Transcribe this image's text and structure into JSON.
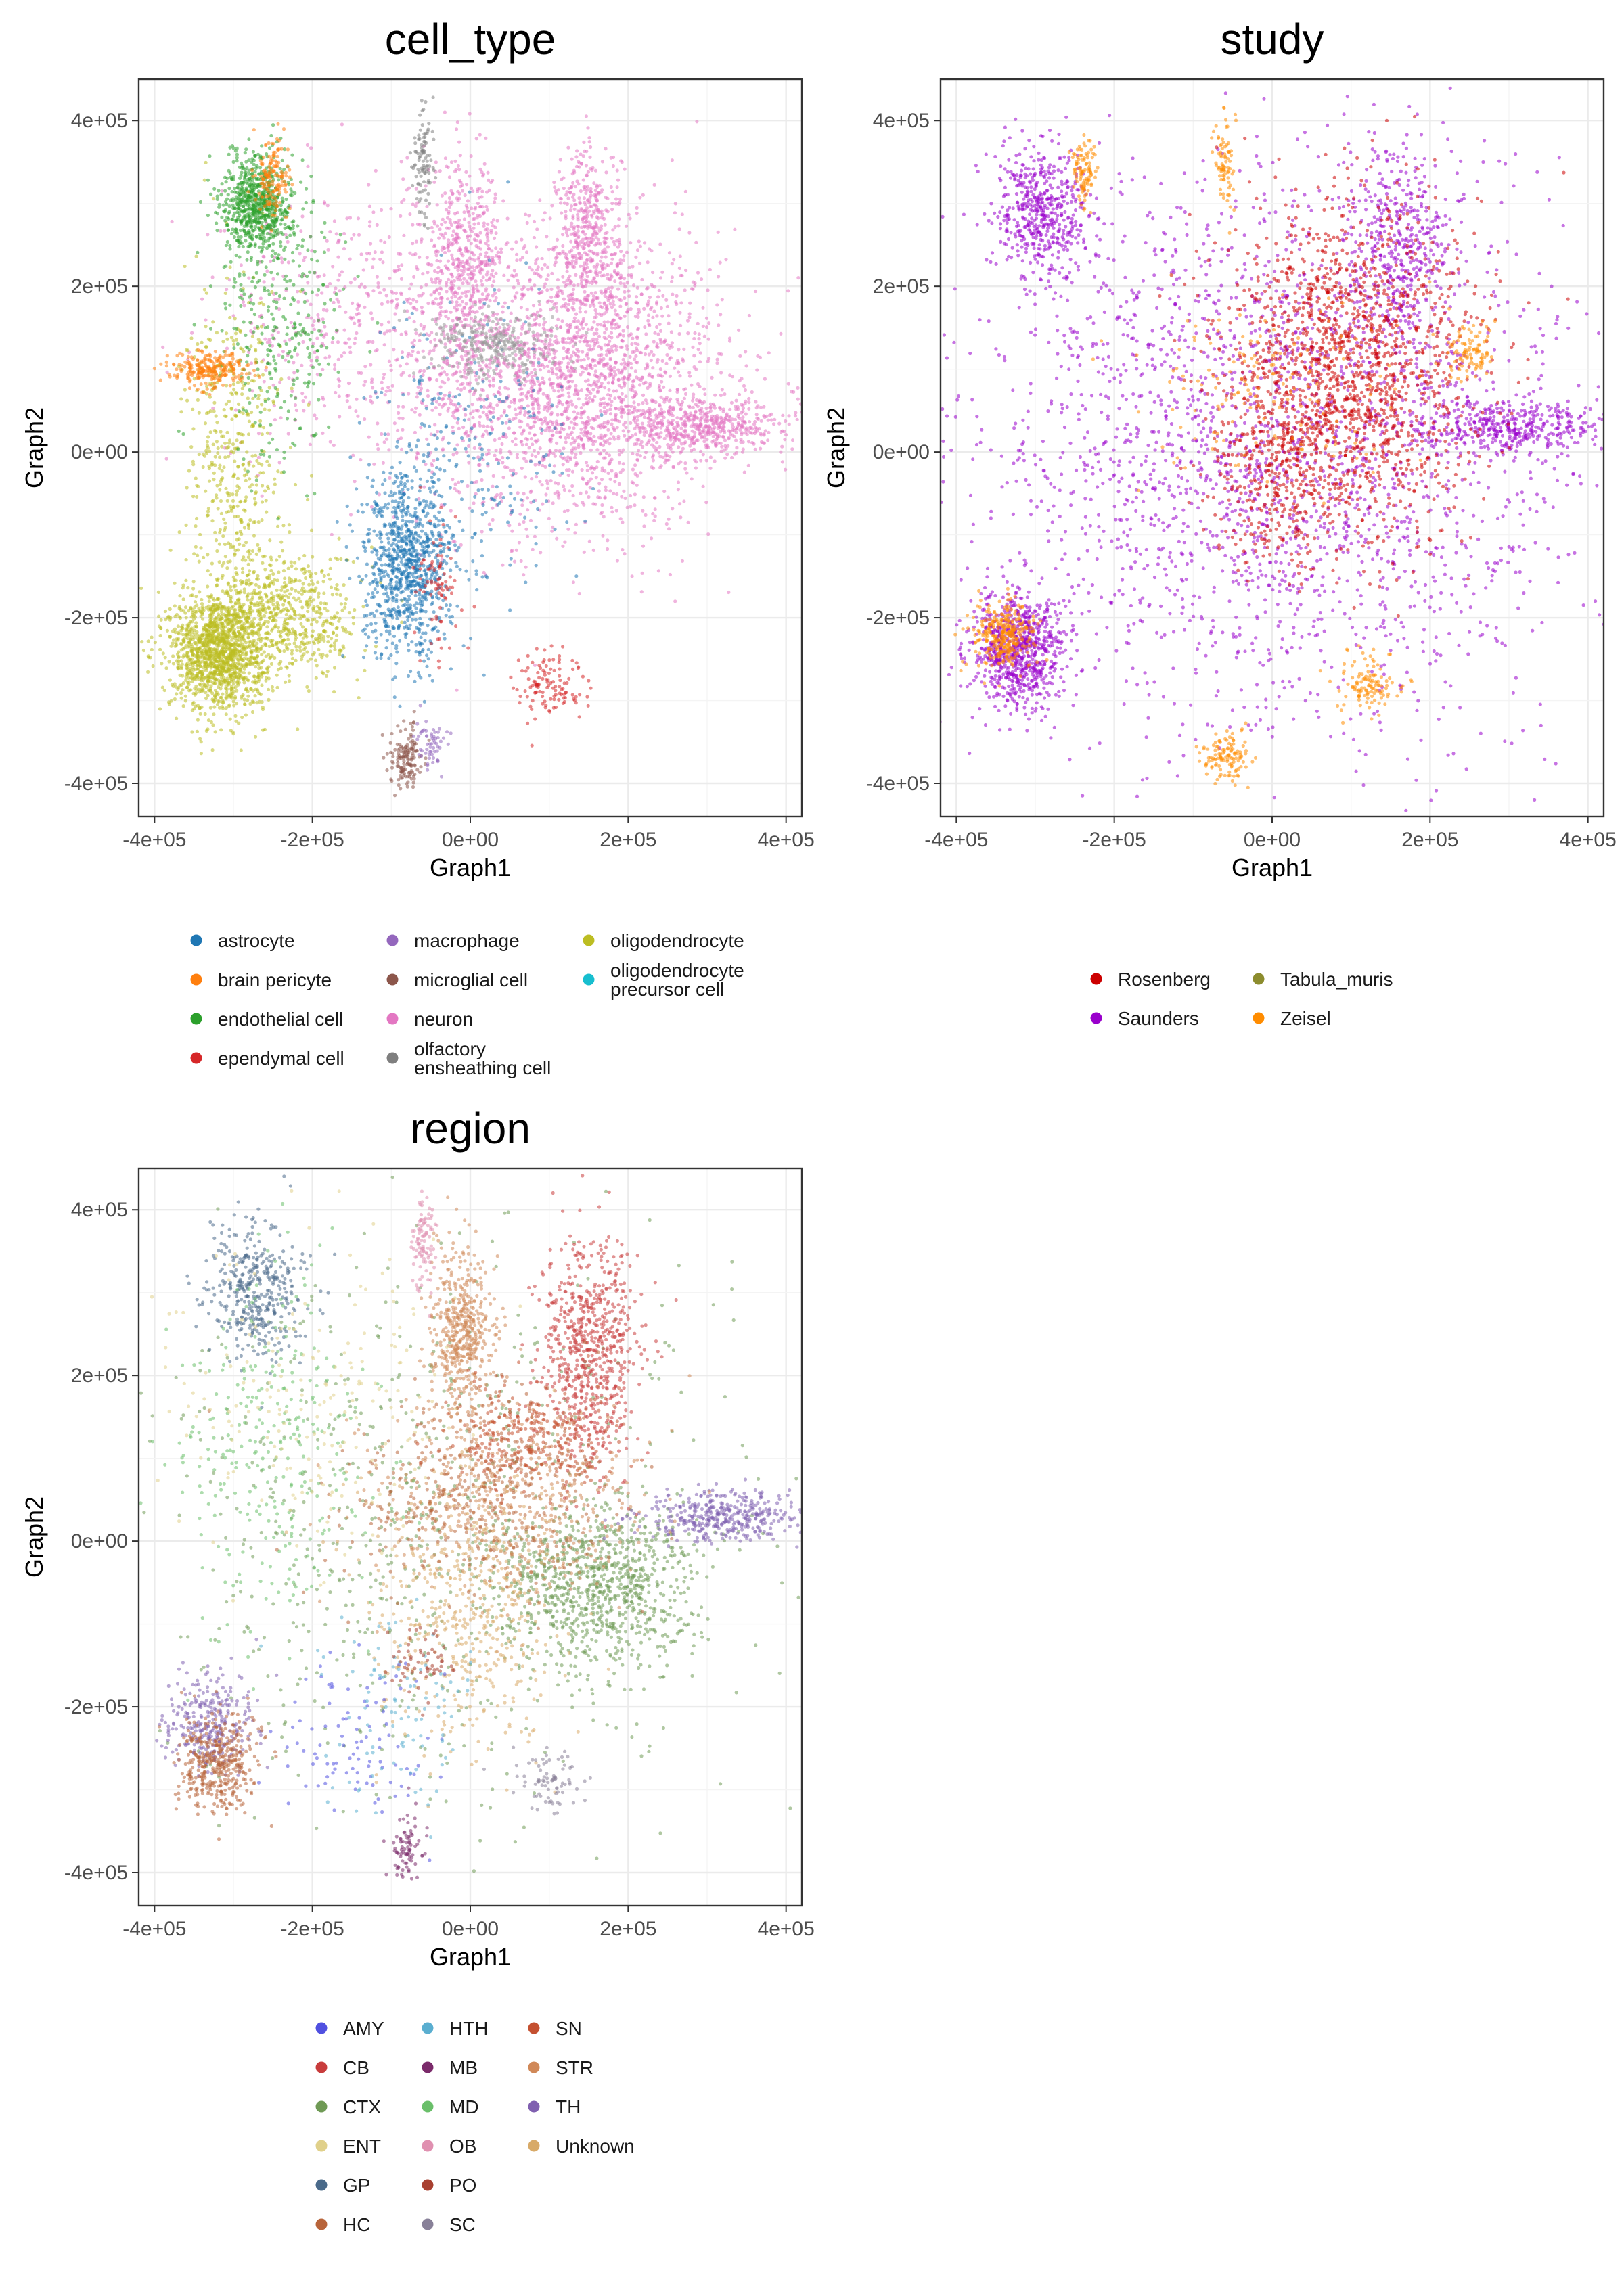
{
  "chart_data": [
    {
      "type": "scatter",
      "title": "cell_type",
      "xlabel": "Graph1",
      "ylabel": "Graph2",
      "xlim": [
        -420000,
        420000
      ],
      "ylim": [
        -440000,
        450000
      ],
      "xticks": [
        -400000,
        -200000,
        0,
        200000,
        400000
      ],
      "yticks": [
        -400000,
        -200000,
        0,
        200000,
        400000
      ],
      "xtick_labels": [
        "-4e+05",
        "-2e+05",
        "0e+00",
        "2e+05",
        "4e+05"
      ],
      "ytick_labels": [
        "-4e+05",
        "-2e+05",
        "0e+00",
        "2e+05",
        "4e+05"
      ],
      "grid": true,
      "legend_position": "bottom",
      "legend": [
        {
          "label": "astrocyte",
          "color": "#1f77b4"
        },
        {
          "label": "brain pericyte",
          "color": "#ff7f0e"
        },
        {
          "label": "endothelial cell",
          "color": "#2ca02c"
        },
        {
          "label": "ependymal cell",
          "color": "#d62728"
        },
        {
          "label": "macrophage",
          "color": "#9467bd"
        },
        {
          "label": "microglial cell",
          "color": "#8c564b"
        },
        {
          "label": "neuron",
          "color": "#e377c2"
        },
        {
          "label": "olfactory\nensheathing cell",
          "color": "#7f7f7f"
        },
        {
          "label": "oligodendrocyte",
          "color": "#bcbd22"
        },
        {
          "label": "oligodendrocyte\nprecursor cell",
          "color": "#17becf"
        }
      ],
      "clusters": [
        {
          "series": "neuron",
          "x": 130000,
          "y": 90000,
          "sx": 95000,
          "sy": 90000,
          "n": 2400
        },
        {
          "series": "neuron",
          "x": 300000,
          "y": 30000,
          "sx": 60000,
          "sy": 15000,
          "n": 500
        },
        {
          "series": "neuron",
          "x": -10000,
          "y": 230000,
          "sx": 25000,
          "sy": 60000,
          "n": 500
        },
        {
          "series": "neuron",
          "x": 150000,
          "y": 270000,
          "sx": 20000,
          "sy": 50000,
          "n": 400
        },
        {
          "series": "neuron",
          "x": -150000,
          "y": 150000,
          "sx": 90000,
          "sy": 80000,
          "n": 500
        },
        {
          "series": "oligodendrocyte",
          "x": -320000,
          "y": -240000,
          "sx": 30000,
          "sy": 35000,
          "n": 1400
        },
        {
          "series": "oligodendrocyte",
          "x": -230000,
          "y": -200000,
          "sx": 45000,
          "sy": 40000,
          "n": 600
        },
        {
          "series": "oligodendrocyte",
          "x": -300000,
          "y": -20000,
          "sx": 30000,
          "sy": 110000,
          "n": 500
        },
        {
          "series": "endothelial cell",
          "x": -270000,
          "y": 300000,
          "sx": 22000,
          "sy": 30000,
          "n": 700
        },
        {
          "series": "endothelial cell",
          "x": -240000,
          "y": 150000,
          "sx": 40000,
          "sy": 80000,
          "n": 300
        },
        {
          "series": "astrocyte",
          "x": -80000,
          "y": -140000,
          "sx": 28000,
          "sy": 55000,
          "n": 900
        },
        {
          "series": "astrocyte",
          "x": 0,
          "y": 0,
          "sx": 60000,
          "sy": 100000,
          "n": 250
        },
        {
          "series": "brain pericyte",
          "x": -330000,
          "y": 100000,
          "sx": 25000,
          "sy": 10000,
          "n": 250
        },
        {
          "series": "brain pericyte",
          "x": -250000,
          "y": 330000,
          "sx": 10000,
          "sy": 25000,
          "n": 150
        },
        {
          "series": "oligodendrocyte precursor cell",
          "x": 30000,
          "y": 130000,
          "sx": 40000,
          "sy": 20000,
          "n": 300
        },
        {
          "series": "ependymal cell",
          "x": -40000,
          "y": -160000,
          "sx": 15000,
          "sy": 40000,
          "n": 80
        },
        {
          "series": "ependymal cell",
          "x": 100000,
          "y": -280000,
          "sx": 20000,
          "sy": 20000,
          "n": 120
        },
        {
          "series": "microglial cell",
          "x": -80000,
          "y": -370000,
          "sx": 10000,
          "sy": 20000,
          "n": 150
        },
        {
          "series": "macrophage",
          "x": -50000,
          "y": -350000,
          "sx": 10000,
          "sy": 15000,
          "n": 60
        },
        {
          "series": "olfactory\nensheathing cell",
          "x": -60000,
          "y": 350000,
          "sx": 6000,
          "sy": 35000,
          "n": 100
        }
      ]
    },
    {
      "type": "scatter",
      "title": "study",
      "xlabel": "Graph1",
      "ylabel": "Graph2",
      "xlim": [
        -420000,
        420000
      ],
      "ylim": [
        -440000,
        450000
      ],
      "xticks": [
        -400000,
        -200000,
        0,
        200000,
        400000
      ],
      "yticks": [
        -400000,
        -200000,
        0,
        200000,
        400000
      ],
      "xtick_labels": [
        "-4e+05",
        "-2e+05",
        "0e+00",
        "2e+05",
        "4e+05"
      ],
      "ytick_labels": [
        "-4e+05",
        "-2e+05",
        "0e+00",
        "2e+05",
        "4e+05"
      ],
      "grid": true,
      "legend_position": "bottom",
      "legend": [
        {
          "label": "Rosenberg",
          "color": "#cc0000"
        },
        {
          "label": "Saunders",
          "color": "#9900cc"
        },
        {
          "label": "Tabula_muris",
          "color": "#8c8c2e"
        },
        {
          "label": "Zeisel",
          "color": "#ff8c00"
        }
      ],
      "clusters": [
        {
          "series": "Saunders",
          "x": 0,
          "y": 0,
          "sx": 200000,
          "sy": 170000,
          "n": 2400
        },
        {
          "series": "Saunders",
          "x": -320000,
          "y": -240000,
          "sx": 30000,
          "sy": 35000,
          "n": 800
        },
        {
          "series": "Saunders",
          "x": -290000,
          "y": 290000,
          "sx": 30000,
          "sy": 40000,
          "n": 500
        },
        {
          "series": "Saunders",
          "x": 300000,
          "y": 30000,
          "sx": 60000,
          "sy": 15000,
          "n": 400
        },
        {
          "series": "Saunders",
          "x": 160000,
          "y": 250000,
          "sx": 30000,
          "sy": 60000,
          "n": 400
        },
        {
          "series": "Rosenberg",
          "x": 100000,
          "y": 100000,
          "sx": 80000,
          "sy": 100000,
          "n": 1600
        },
        {
          "series": "Rosenberg",
          "x": 0,
          "y": -30000,
          "sx": 40000,
          "sy": 60000,
          "n": 300
        },
        {
          "series": "Zeisel",
          "x": -340000,
          "y": -220000,
          "sx": 20000,
          "sy": 20000,
          "n": 300
        },
        {
          "series": "Zeisel",
          "x": -240000,
          "y": 340000,
          "sx": 8000,
          "sy": 20000,
          "n": 100
        },
        {
          "series": "Zeisel",
          "x": -60000,
          "y": 350000,
          "sx": 6000,
          "sy": 30000,
          "n": 80
        },
        {
          "series": "Zeisel",
          "x": -60000,
          "y": -370000,
          "sx": 15000,
          "sy": 15000,
          "n": 120
        },
        {
          "series": "Zeisel",
          "x": 120000,
          "y": -280000,
          "sx": 20000,
          "sy": 20000,
          "n": 120
        },
        {
          "series": "Zeisel",
          "x": 250000,
          "y": 120000,
          "sx": 15000,
          "sy": 20000,
          "n": 100
        },
        {
          "series": "Zeisel",
          "x": 0,
          "y": 80000,
          "sx": 80000,
          "sy": 50000,
          "n": 150
        }
      ]
    },
    {
      "type": "scatter",
      "title": "region",
      "xlabel": "Graph1",
      "ylabel": "Graph2",
      "xlim": [
        -420000,
        420000
      ],
      "ylim": [
        -440000,
        450000
      ],
      "xticks": [
        -400000,
        -200000,
        0,
        200000,
        400000
      ],
      "yticks": [
        -400000,
        -200000,
        0,
        200000,
        400000
      ],
      "xtick_labels": [
        "-4e+05",
        "-2e+05",
        "0e+00",
        "2e+05",
        "4e+05"
      ],
      "ytick_labels": [
        "-4e+05",
        "-2e+05",
        "0e+00",
        "2e+05",
        "4e+05"
      ],
      "grid": true,
      "legend_position": "bottom",
      "legend": [
        {
          "label": "AMY",
          "color": "#5050e0"
        },
        {
          "label": "CB",
          "color": "#c83c3c"
        },
        {
          "label": "CTX",
          "color": "#6f9a55"
        },
        {
          "label": "ENT",
          "color": "#e0d08a"
        },
        {
          "label": "GP",
          "color": "#4a6a8a"
        },
        {
          "label": "HC",
          "color": "#b8643a"
        },
        {
          "label": "HTH",
          "color": "#5aaed0"
        },
        {
          "label": "MB",
          "color": "#7a2a6a"
        },
        {
          "label": "MD",
          "color": "#6abf6a"
        },
        {
          "label": "OB",
          "color": "#e090b0"
        },
        {
          "label": "PO",
          "color": "#a84030"
        },
        {
          "label": "SC",
          "color": "#888098"
        },
        {
          "label": "SN",
          "color": "#c45030"
        },
        {
          "label": "STR",
          "color": "#d08858"
        },
        {
          "label": "TH",
          "color": "#8060b0"
        },
        {
          "label": "Unknown",
          "color": "#d8aa68"
        }
      ],
      "clusters": [
        {
          "series": "CTX",
          "x": 160000,
          "y": -60000,
          "sx": 60000,
          "sy": 50000,
          "n": 900
        },
        {
          "series": "CTX",
          "x": -50000,
          "y": 0,
          "sx": 180000,
          "sy": 170000,
          "n": 700
        },
        {
          "series": "CB",
          "x": 150000,
          "y": 230000,
          "sx": 30000,
          "sy": 70000,
          "n": 700
        },
        {
          "series": "TH",
          "x": 320000,
          "y": 30000,
          "sx": 50000,
          "sy": 15000,
          "n": 400
        },
        {
          "series": "TH",
          "x": -330000,
          "y": -220000,
          "sx": 30000,
          "sy": 30000,
          "n": 300
        },
        {
          "series": "STR",
          "x": -10000,
          "y": 250000,
          "sx": 20000,
          "sy": 50000,
          "n": 500
        },
        {
          "series": "STR",
          "x": 50000,
          "y": 50000,
          "sx": 80000,
          "sy": 60000,
          "n": 500
        },
        {
          "series": "Unknown",
          "x": 0,
          "y": -80000,
          "sx": 60000,
          "sy": 80000,
          "n": 500
        },
        {
          "series": "HC",
          "x": -320000,
          "y": -270000,
          "sx": 25000,
          "sy": 30000,
          "n": 400
        },
        {
          "series": "HC",
          "x": 0,
          "y": 60000,
          "sx": 90000,
          "sy": 60000,
          "n": 400
        },
        {
          "series": "GP",
          "x": -270000,
          "y": 300000,
          "sx": 30000,
          "sy": 40000,
          "n": 400
        },
        {
          "series": "OB",
          "x": -60000,
          "y": 360000,
          "sx": 8000,
          "sy": 30000,
          "n": 100
        },
        {
          "series": "SC",
          "x": 100000,
          "y": -290000,
          "sx": 20000,
          "sy": 20000,
          "n": 80
        },
        {
          "series": "SN",
          "x": 80000,
          "y": 130000,
          "sx": 50000,
          "sy": 40000,
          "n": 300
        },
        {
          "series": "MD",
          "x": -250000,
          "y": 100000,
          "sx": 60000,
          "sy": 100000,
          "n": 300
        },
        {
          "series": "MB",
          "x": -80000,
          "y": -370000,
          "sx": 10000,
          "sy": 20000,
          "n": 80
        },
        {
          "series": "ENT",
          "x": -200000,
          "y": 150000,
          "sx": 90000,
          "sy": 100000,
          "n": 200
        },
        {
          "series": "AMY",
          "x": -150000,
          "y": -250000,
          "sx": 50000,
          "sy": 50000,
          "n": 100
        },
        {
          "series": "HTH",
          "x": -100000,
          "y": -200000,
          "sx": 60000,
          "sy": 60000,
          "n": 100
        },
        {
          "series": "PO",
          "x": -60000,
          "y": -150000,
          "sx": 20000,
          "sy": 20000,
          "n": 60
        }
      ]
    }
  ]
}
